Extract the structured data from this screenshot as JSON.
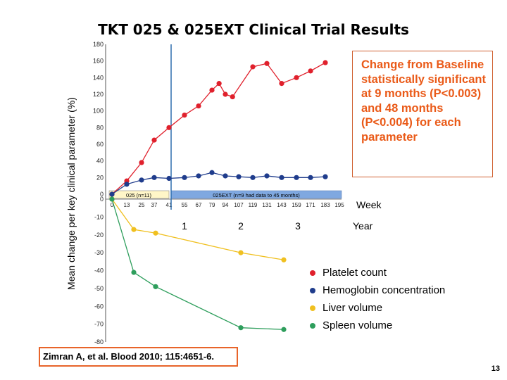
{
  "title": "TKT 025 & 025EXT Clinical Trial Results",
  "annotation": "Change from Baseline statistically significant at 9 months (P<0.003) and 48 months (P<0.004) for each parameter",
  "citation": "Zimran A, et al. Blood 2010; 115:4651-6.",
  "page_number": "13",
  "legend": [
    {
      "label": "Platelet count",
      "color": "#e0202c"
    },
    {
      "label": "Hemoglobin concentration",
      "color": "#1f3c8c"
    },
    {
      "label": "Liver volume",
      "color": "#f0c020"
    },
    {
      "label": "Spleen volume",
      "color": "#2e9e5c"
    }
  ],
  "chart_data": {
    "type": "line",
    "ylabel": "Mean change per key clinical parameter (%)",
    "upper_panel": {
      "ylim": [
        0,
        180
      ],
      "yticks": [
        0,
        20,
        40,
        60,
        80,
        100,
        120,
        140,
        160,
        180
      ],
      "xaxis_label": "Week",
      "x_ticks": [
        "0",
        "13",
        "25",
        "37",
        "41",
        "55",
        "67",
        "79",
        "94",
        "107",
        "119",
        "131",
        "143",
        "159",
        "171",
        "183",
        "195"
      ],
      "band_labels": [
        "025 (n=11)",
        "025EXT (n=9 had data to 45 months)"
      ],
      "series": [
        {
          "name": "Platelet count",
          "color": "#e0202c",
          "x": [
            0,
            13,
            25,
            37,
            41,
            55,
            67,
            79,
            87,
            94,
            101,
            119,
            131,
            143,
            159,
            171,
            183
          ],
          "values": [
            0,
            16,
            38,
            65,
            80,
            95,
            106,
            125,
            133,
            120,
            117,
            153,
            157,
            133,
            140,
            148,
            158
          ]
        },
        {
          "name": "Hemoglobin concentration",
          "color": "#1f3c8c",
          "x": [
            0,
            13,
            25,
            37,
            41,
            55,
            67,
            79,
            94,
            107,
            119,
            131,
            143,
            159,
            171,
            183
          ],
          "values": [
            0,
            12,
            17,
            20,
            19,
            20,
            22,
            26,
            22,
            21,
            20,
            22,
            20,
            20,
            20,
            21
          ]
        }
      ]
    },
    "lower_panel": {
      "ylim": [
        -80,
        0
      ],
      "yticks": [
        0,
        -10,
        -20,
        -30,
        -40,
        -50,
        -60,
        -70,
        -80
      ],
      "xaxis_label": "Year",
      "x_ticks": [
        "1",
        "2",
        "3"
      ],
      "series": [
        {
          "name": "Liver volume",
          "color": "#f0c020",
          "x": [
            0,
            0.25,
            0.5,
            2,
            3
          ],
          "values": [
            0,
            -17,
            -19,
            -30,
            -34
          ]
        },
        {
          "name": "Spleen volume",
          "color": "#2e9e5c",
          "x": [
            0,
            0.25,
            0.5,
            2,
            3
          ],
          "values": [
            0,
            -41,
            -49,
            -72,
            -73
          ]
        }
      ]
    }
  }
}
